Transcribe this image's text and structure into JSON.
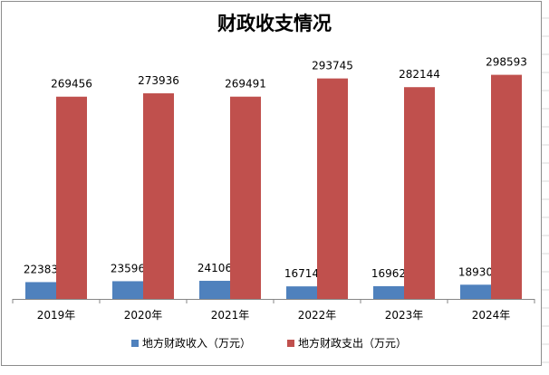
{
  "chart_data": {
    "type": "bar",
    "title": "财政收支情况",
    "categories": [
      "2019年",
      "2020年",
      "2021年",
      "2022年",
      "2023年",
      "2024年"
    ],
    "series": [
      {
        "name": "地方财政收入（万元）",
        "color": "#4f81bd",
        "values": [
          22383,
          23596,
          24106,
          16714,
          16962,
          18930
        ]
      },
      {
        "name": "地方财政支出（万元）",
        "color": "#c0504d",
        "values": [
          269456,
          273936,
          269491,
          293745,
          282144,
          298593
        ]
      }
    ],
    "ylim": [
      0,
      350000
    ],
    "legend_position": "bottom",
    "data_labels": true,
    "y_axis_visible": false,
    "grid": false
  }
}
